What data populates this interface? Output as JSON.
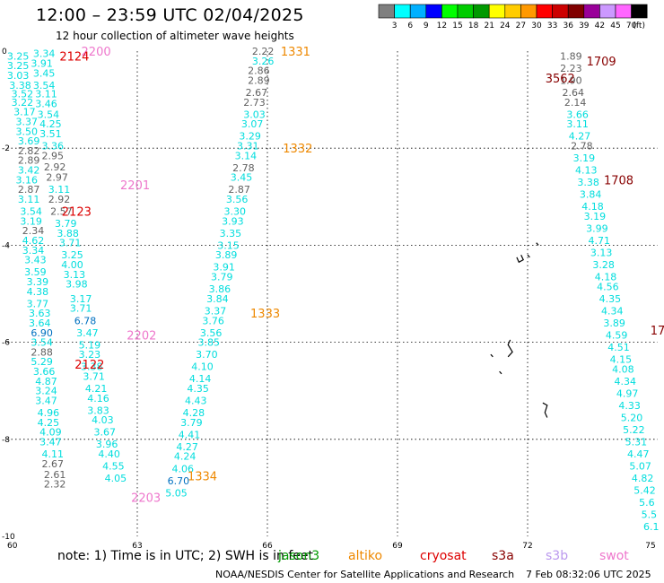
{
  "header": {
    "title": "12:00 – 23:59 UTC 02/04/2025",
    "subtitle": "12 hour collection of altimeter wave heights"
  },
  "colorbar": {
    "unit": "(ft)",
    "bins": [
      {
        "color": "#7f7f7f",
        "label": "3"
      },
      {
        "color": "#00ffff",
        "label": "6"
      },
      {
        "color": "#00b0ff",
        "label": "9"
      },
      {
        "color": "#0000ff",
        "label": "12"
      },
      {
        "color": "#00ff00",
        "label": "15"
      },
      {
        "color": "#00cc00",
        "label": "18"
      },
      {
        "color": "#009900",
        "label": "21"
      },
      {
        "color": "#ffff00",
        "label": "24"
      },
      {
        "color": "#ffcc00",
        "label": "27"
      },
      {
        "color": "#ff9900",
        "label": "30"
      },
      {
        "color": "#ff0000",
        "label": "33"
      },
      {
        "color": "#cc0000",
        "label": "36"
      },
      {
        "color": "#800000",
        "label": "39"
      },
      {
        "color": "#990099",
        "label": "42"
      },
      {
        "color": "#cc99ff",
        "label": "45"
      },
      {
        "color": "#ff66ff",
        "label": "70"
      },
      {
        "color": "#000000",
        "label": ""
      }
    ]
  },
  "axes": {
    "lon_ticks": [
      "60",
      "63",
      "66",
      "69",
      "72",
      "75"
    ],
    "lat_ticks": [
      "0",
      "-2",
      "-4",
      "-6",
      "-8",
      "-10"
    ],
    "lon_range": [
      60,
      75
    ],
    "lat_range": [
      0,
      -10
    ]
  },
  "colors": {
    "teal": "#00dddd",
    "gray": "#606060",
    "blue": "#0070c0",
    "pass_orange": "#ee8800",
    "pass_red": "#dd0000",
    "pass_pink": "#ee77cc",
    "pass_maroon": "#880000"
  },
  "tracks": [
    {
      "lon": 60.85,
      "lat": -0.05,
      "v": "3.34",
      "c": "teal"
    },
    {
      "lon": 60.25,
      "lat": -0.1,
      "v": "3.25",
      "c": "teal"
    },
    {
      "lon": 60.8,
      "lat": -0.25,
      "v": "3.91",
      "c": "teal"
    },
    {
      "lon": 60.25,
      "lat": -0.3,
      "v": "3.25",
      "c": "teal"
    },
    {
      "lon": 60.85,
      "lat": -0.45,
      "v": "3.45",
      "c": "teal"
    },
    {
      "lon": 60.25,
      "lat": -0.5,
      "v": "3.03",
      "c": "teal"
    },
    {
      "lon": 60.3,
      "lat": -0.7,
      "v": "3.38",
      "c": "teal"
    },
    {
      "lon": 60.85,
      "lat": -0.7,
      "v": "3.54",
      "c": "teal"
    },
    {
      "lon": 60.35,
      "lat": -0.88,
      "v": "3.52",
      "c": "teal"
    },
    {
      "lon": 60.9,
      "lat": -0.88,
      "v": "3.11",
      "c": "teal"
    },
    {
      "lon": 60.35,
      "lat": -1.05,
      "v": "3.22",
      "c": "teal"
    },
    {
      "lon": 60.9,
      "lat": -1.08,
      "v": "3.46",
      "c": "teal"
    },
    {
      "lon": 60.4,
      "lat": -1.25,
      "v": "3.17",
      "c": "teal"
    },
    {
      "lon": 60.95,
      "lat": -1.3,
      "v": "3.54",
      "c": "teal"
    },
    {
      "lon": 60.45,
      "lat": -1.45,
      "v": "3.37",
      "c": "teal"
    },
    {
      "lon": 61.0,
      "lat": -1.5,
      "v": "4.25",
      "c": "teal"
    },
    {
      "lon": 60.45,
      "lat": -1.65,
      "v": "3.50",
      "c": "teal"
    },
    {
      "lon": 61.0,
      "lat": -1.7,
      "v": "3.51",
      "c": "teal"
    },
    {
      "lon": 60.5,
      "lat": -1.85,
      "v": "3.69",
      "c": "teal"
    },
    {
      "lon": 61.05,
      "lat": -1.95,
      "v": "3.36",
      "c": "teal"
    },
    {
      "lon": 60.5,
      "lat": -2.05,
      "v": "2.82",
      "c": "gray"
    },
    {
      "lon": 61.05,
      "lat": -2.15,
      "v": "2.95",
      "c": "gray"
    },
    {
      "lon": 60.5,
      "lat": -2.25,
      "v": "2.89",
      "c": "gray"
    },
    {
      "lon": 61.1,
      "lat": -2.38,
      "v": "2.92",
      "c": "gray"
    },
    {
      "lon": 60.5,
      "lat": -2.45,
      "v": "3.42",
      "c": "teal"
    },
    {
      "lon": 60.45,
      "lat": -2.65,
      "v": "3.16",
      "c": "teal"
    },
    {
      "lon": 61.15,
      "lat": -2.6,
      "v": "2.97",
      "c": "gray"
    },
    {
      "lon": 60.5,
      "lat": -2.85,
      "v": "2.87",
      "c": "gray"
    },
    {
      "lon": 61.2,
      "lat": -2.85,
      "v": "3.11",
      "c": "teal"
    },
    {
      "lon": 60.5,
      "lat": -3.05,
      "v": "3.11",
      "c": "teal"
    },
    {
      "lon": 61.2,
      "lat": -3.05,
      "v": "2.92",
      "c": "gray"
    },
    {
      "lon": 60.55,
      "lat": -3.3,
      "v": "3.54",
      "c": "teal"
    },
    {
      "lon": 61.25,
      "lat": -3.3,
      "v": "2.57",
      "c": "gray"
    },
    {
      "lon": 60.55,
      "lat": -3.5,
      "v": "3.19",
      "c": "teal"
    },
    {
      "lon": 61.35,
      "lat": -3.55,
      "v": "3.79",
      "c": "teal"
    },
    {
      "lon": 60.6,
      "lat": -3.7,
      "v": "2.34",
      "c": "gray"
    },
    {
      "lon": 61.4,
      "lat": -3.75,
      "v": "3.88",
      "c": "teal"
    },
    {
      "lon": 60.6,
      "lat": -3.9,
      "v": "4.62",
      "c": "teal"
    },
    {
      "lon": 61.45,
      "lat": -3.95,
      "v": "3.71",
      "c": "teal"
    },
    {
      "lon": 60.6,
      "lat": -4.1,
      "v": "3.34",
      "c": "teal"
    },
    {
      "lon": 61.5,
      "lat": -4.2,
      "v": "3.25",
      "c": "teal"
    },
    {
      "lon": 60.65,
      "lat": -4.3,
      "v": "3.43",
      "c": "teal"
    },
    {
      "lon": 61.5,
      "lat": -4.4,
      "v": "4.00",
      "c": "teal"
    },
    {
      "lon": 60.65,
      "lat": -4.55,
      "v": "3.59",
      "c": "teal"
    },
    {
      "lon": 61.55,
      "lat": -4.6,
      "v": "3.13",
      "c": "teal"
    },
    {
      "lon": 60.7,
      "lat": -4.75,
      "v": "3.39",
      "c": "teal"
    },
    {
      "lon": 61.6,
      "lat": -4.8,
      "v": "3.98",
      "c": "teal"
    },
    {
      "lon": 60.7,
      "lat": -4.95,
      "v": "4.38",
      "c": "teal"
    },
    {
      "lon": 61.7,
      "lat": -5.1,
      "v": "3.17",
      "c": "teal"
    },
    {
      "lon": 60.7,
      "lat": -5.2,
      "v": "3.77",
      "c": "teal"
    },
    {
      "lon": 61.7,
      "lat": -5.3,
      "v": "3.71",
      "c": "teal"
    },
    {
      "lon": 60.75,
      "lat": -5.4,
      "v": "3.63",
      "c": "teal"
    },
    {
      "lon": 61.8,
      "lat": -5.55,
      "v": "6.78",
      "c": "blue"
    },
    {
      "lon": 60.75,
      "lat": -5.6,
      "v": "3.64",
      "c": "teal"
    },
    {
      "lon": 60.8,
      "lat": -5.8,
      "v": "6.90",
      "c": "blue"
    },
    {
      "lon": 61.85,
      "lat": -5.8,
      "v": "3.47",
      "c": "teal"
    },
    {
      "lon": 60.8,
      "lat": -6.0,
      "v": "3.54",
      "c": "teal"
    },
    {
      "lon": 61.9,
      "lat": -6.05,
      "v": "5.19",
      "c": "teal"
    },
    {
      "lon": 60.8,
      "lat": -6.2,
      "v": "2.88",
      "c": "gray"
    },
    {
      "lon": 61.9,
      "lat": -6.25,
      "v": "3.23",
      "c": "teal"
    },
    {
      "lon": 60.8,
      "lat": -6.4,
      "v": "5.29",
      "c": "teal"
    },
    {
      "lon": 61.95,
      "lat": -6.5,
      "v": "3.38",
      "c": "teal"
    },
    {
      "lon": 60.85,
      "lat": -6.6,
      "v": "3.66",
      "c": "teal"
    },
    {
      "lon": 62.0,
      "lat": -6.7,
      "v": "3.71",
      "c": "teal"
    },
    {
      "lon": 60.9,
      "lat": -6.8,
      "v": "4.87",
      "c": "teal"
    },
    {
      "lon": 62.05,
      "lat": -6.95,
      "v": "4.21",
      "c": "teal"
    },
    {
      "lon": 60.9,
      "lat": -7.0,
      "v": "3.24",
      "c": "teal"
    },
    {
      "lon": 62.1,
      "lat": -7.15,
      "v": "4.16",
      "c": "teal"
    },
    {
      "lon": 60.9,
      "lat": -7.2,
      "v": "3.47",
      "c": "teal"
    },
    {
      "lon": 62.1,
      "lat": -7.4,
      "v": "3.83",
      "c": "teal"
    },
    {
      "lon": 60.95,
      "lat": -7.45,
      "v": "4.96",
      "c": "teal"
    },
    {
      "lon": 62.2,
      "lat": -7.6,
      "v": "4.03",
      "c": "teal"
    },
    {
      "lon": 60.95,
      "lat": -7.65,
      "v": "4.25",
      "c": "teal"
    },
    {
      "lon": 62.25,
      "lat": -7.85,
      "v": "3.67",
      "c": "teal"
    },
    {
      "lon": 61.0,
      "lat": -7.85,
      "v": "4.09",
      "c": "teal"
    },
    {
      "lon": 61.0,
      "lat": -8.05,
      "v": "3.47",
      "c": "teal"
    },
    {
      "lon": 62.3,
      "lat": -8.1,
      "v": "3.96",
      "c": "teal"
    },
    {
      "lon": 61.05,
      "lat": -8.3,
      "v": "4.11",
      "c": "teal"
    },
    {
      "lon": 62.35,
      "lat": -8.3,
      "v": "4.40",
      "c": "teal"
    },
    {
      "lon": 61.05,
      "lat": -8.5,
      "v": "2.67",
      "c": "gray"
    },
    {
      "lon": 62.45,
      "lat": -8.55,
      "v": "4.55",
      "c": "teal"
    },
    {
      "lon": 61.1,
      "lat": -8.72,
      "v": "2.61",
      "c": "gray"
    },
    {
      "lon": 62.5,
      "lat": -8.8,
      "v": "4.05",
      "c": "teal"
    },
    {
      "lon": 61.1,
      "lat": -8.92,
      "v": "2.32",
      "c": "gray"
    },
    {
      "lon": 65.9,
      "lat": 0.0,
      "v": "2.22",
      "c": "gray"
    },
    {
      "lon": 65.9,
      "lat": -0.2,
      "v": "3.26",
      "c": "teal"
    },
    {
      "lon": 65.8,
      "lat": -0.4,
      "v": "2.86",
      "c": "gray"
    },
    {
      "lon": 65.8,
      "lat": -0.6,
      "v": "2.89",
      "c": "gray"
    },
    {
      "lon": 65.75,
      "lat": -0.85,
      "v": "2.67",
      "c": "gray"
    },
    {
      "lon": 65.7,
      "lat": -1.05,
      "v": "2.73",
      "c": "gray"
    },
    {
      "lon": 65.7,
      "lat": -1.3,
      "v": "3.03",
      "c": "teal"
    },
    {
      "lon": 65.65,
      "lat": -1.5,
      "v": "3.07",
      "c": "teal"
    },
    {
      "lon": 65.6,
      "lat": -1.75,
      "v": "3.29",
      "c": "teal"
    },
    {
      "lon": 65.55,
      "lat": -1.95,
      "v": "3.31",
      "c": "teal"
    },
    {
      "lon": 65.5,
      "lat": -2.15,
      "v": "3.14",
      "c": "teal"
    },
    {
      "lon": 65.45,
      "lat": -2.4,
      "v": "2.78",
      "c": "gray"
    },
    {
      "lon": 65.4,
      "lat": -2.6,
      "v": "3.45",
      "c": "teal"
    },
    {
      "lon": 65.35,
      "lat": -2.85,
      "v": "2.87",
      "c": "gray"
    },
    {
      "lon": 65.3,
      "lat": -3.05,
      "v": "3.56",
      "c": "teal"
    },
    {
      "lon": 65.25,
      "lat": -3.3,
      "v": "3.30",
      "c": "teal"
    },
    {
      "lon": 65.2,
      "lat": -3.5,
      "v": "3.93",
      "c": "teal"
    },
    {
      "lon": 65.15,
      "lat": -3.75,
      "v": "3.35",
      "c": "teal"
    },
    {
      "lon": 65.1,
      "lat": -4.0,
      "v": "3.15",
      "c": "teal"
    },
    {
      "lon": 65.05,
      "lat": -4.2,
      "v": "3.89",
      "c": "teal"
    },
    {
      "lon": 65.0,
      "lat": -4.45,
      "v": "3.91",
      "c": "teal"
    },
    {
      "lon": 64.95,
      "lat": -4.65,
      "v": "3.79",
      "c": "teal"
    },
    {
      "lon": 64.9,
      "lat": -4.9,
      "v": "3.86",
      "c": "teal"
    },
    {
      "lon": 64.85,
      "lat": -5.1,
      "v": "3.84",
      "c": "teal"
    },
    {
      "lon": 64.8,
      "lat": -5.35,
      "v": "3.37",
      "c": "teal"
    },
    {
      "lon": 64.75,
      "lat": -5.55,
      "v": "3.76",
      "c": "teal"
    },
    {
      "lon": 64.7,
      "lat": -5.8,
      "v": "3.56",
      "c": "teal"
    },
    {
      "lon": 64.65,
      "lat": -6.0,
      "v": "3.85",
      "c": "teal"
    },
    {
      "lon": 64.6,
      "lat": -6.25,
      "v": "3.70",
      "c": "teal"
    },
    {
      "lon": 64.5,
      "lat": -6.5,
      "v": "4.10",
      "c": "teal"
    },
    {
      "lon": 64.45,
      "lat": -6.75,
      "v": "4.14",
      "c": "teal"
    },
    {
      "lon": 64.4,
      "lat": -6.95,
      "v": "4.35",
      "c": "teal"
    },
    {
      "lon": 64.35,
      "lat": -7.2,
      "v": "4.43",
      "c": "teal"
    },
    {
      "lon": 64.3,
      "lat": -7.45,
      "v": "4.28",
      "c": "teal"
    },
    {
      "lon": 64.25,
      "lat": -7.65,
      "v": "3.79",
      "c": "teal"
    },
    {
      "lon": 64.2,
      "lat": -7.9,
      "v": "4.41",
      "c": "teal"
    },
    {
      "lon": 64.15,
      "lat": -8.15,
      "v": "4.27",
      "c": "teal"
    },
    {
      "lon": 64.1,
      "lat": -8.35,
      "v": "4.24",
      "c": "teal"
    },
    {
      "lon": 64.05,
      "lat": -8.6,
      "v": "4.06",
      "c": "teal"
    },
    {
      "lon": 63.95,
      "lat": -8.85,
      "v": "6.70",
      "c": "blue"
    },
    {
      "lon": 63.9,
      "lat": -9.1,
      "v": "5.05",
      "c": "teal"
    },
    {
      "lon": 73.0,
      "lat": -0.1,
      "v": "1.89",
      "c": "gray"
    },
    {
      "lon": 73.0,
      "lat": -0.35,
      "v": "2.23",
      "c": "gray"
    },
    {
      "lon": 73.0,
      "lat": -0.6,
      "v": "1.90",
      "c": "gray"
    },
    {
      "lon": 73.05,
      "lat": -0.85,
      "v": "2.64",
      "c": "gray"
    },
    {
      "lon": 73.1,
      "lat": -1.05,
      "v": "2.14",
      "c": "gray"
    },
    {
      "lon": 73.15,
      "lat": -1.3,
      "v": "3.66",
      "c": "teal"
    },
    {
      "lon": 73.15,
      "lat": -1.5,
      "v": "3.11",
      "c": "teal"
    },
    {
      "lon": 73.2,
      "lat": -1.75,
      "v": "4.27",
      "c": "teal"
    },
    {
      "lon": 73.25,
      "lat": -1.95,
      "v": "2.78",
      "c": "gray"
    },
    {
      "lon": 73.3,
      "lat": -2.2,
      "v": "3.19",
      "c": "teal"
    },
    {
      "lon": 73.35,
      "lat": -2.45,
      "v": "4.13",
      "c": "teal"
    },
    {
      "lon": 73.4,
      "lat": -2.7,
      "v": "3.38",
      "c": "teal"
    },
    {
      "lon": 73.45,
      "lat": -2.95,
      "v": "3.84",
      "c": "teal"
    },
    {
      "lon": 73.5,
      "lat": -3.2,
      "v": "4.18",
      "c": "teal"
    },
    {
      "lon": 73.55,
      "lat": -3.4,
      "v": "3.19",
      "c": "teal"
    },
    {
      "lon": 73.6,
      "lat": -3.65,
      "v": "3.99",
      "c": "teal"
    },
    {
      "lon": 73.65,
      "lat": -3.9,
      "v": "4.71",
      "c": "teal"
    },
    {
      "lon": 73.7,
      "lat": -4.15,
      "v": "3.13",
      "c": "teal"
    },
    {
      "lon": 73.75,
      "lat": -4.4,
      "v": "3.28",
      "c": "teal"
    },
    {
      "lon": 73.8,
      "lat": -4.65,
      "v": "4.18",
      "c": "teal"
    },
    {
      "lon": 73.85,
      "lat": -4.85,
      "v": "4.56",
      "c": "teal"
    },
    {
      "lon": 73.9,
      "lat": -5.1,
      "v": "4.35",
      "c": "teal"
    },
    {
      "lon": 73.95,
      "lat": -5.35,
      "v": "4.34",
      "c": "teal"
    },
    {
      "lon": 74.0,
      "lat": -5.6,
      "v": "3.89",
      "c": "teal"
    },
    {
      "lon": 74.05,
      "lat": -5.85,
      "v": "4.59",
      "c": "teal"
    },
    {
      "lon": 74.1,
      "lat": -6.1,
      "v": "4.51",
      "c": "teal"
    },
    {
      "lon": 74.15,
      "lat": -6.35,
      "v": "4.15",
      "c": "teal"
    },
    {
      "lon": 74.2,
      "lat": -6.55,
      "v": "4.08",
      "c": "teal"
    },
    {
      "lon": 74.25,
      "lat": -6.8,
      "v": "4.34",
      "c": "teal"
    },
    {
      "lon": 74.3,
      "lat": -7.05,
      "v": "4.97",
      "c": "teal"
    },
    {
      "lon": 74.35,
      "lat": -7.3,
      "v": "4.33",
      "c": "teal"
    },
    {
      "lon": 74.4,
      "lat": -7.55,
      "v": "5.20",
      "c": "teal"
    },
    {
      "lon": 74.45,
      "lat": -7.8,
      "v": "5.22",
      "c": "teal"
    },
    {
      "lon": 74.5,
      "lat": -8.05,
      "v": "5.31",
      "c": "teal"
    },
    {
      "lon": 74.55,
      "lat": -8.3,
      "v": "4.47",
      "c": "teal"
    },
    {
      "lon": 74.6,
      "lat": -8.55,
      "v": "5.07",
      "c": "teal"
    },
    {
      "lon": 74.65,
      "lat": -8.8,
      "v": "4.82",
      "c": "teal"
    },
    {
      "lon": 74.7,
      "lat": -9.05,
      "v": "5.42",
      "c": "teal"
    },
    {
      "lon": 74.75,
      "lat": -9.3,
      "v": "5.6",
      "c": "teal"
    },
    {
      "lon": 74.8,
      "lat": -9.55,
      "v": "5.5",
      "c": "teal"
    },
    {
      "lon": 74.85,
      "lat": -9.8,
      "v": "6.1",
      "c": "teal"
    }
  ],
  "pass_labels": [
    {
      "lon": 62.05,
      "lat": 0.0,
      "text": "2200",
      "c": "pass_pink"
    },
    {
      "lon": 61.55,
      "lat": -0.1,
      "text": "2124",
      "c": "pass_red"
    },
    {
      "lon": 66.65,
      "lat": 0.0,
      "text": "1331",
      "c": "pass_orange"
    },
    {
      "lon": 73.7,
      "lat": -0.2,
      "text": "1709",
      "c": "pass_maroon"
    },
    {
      "lon": 72.75,
      "lat": -0.55,
      "text": "3562",
      "c": "pass_maroon"
    },
    {
      "lon": 66.7,
      "lat": -2.0,
      "text": "1332",
      "c": "pass_orange"
    },
    {
      "lon": 62.95,
      "lat": -2.75,
      "text": "2201",
      "c": "pass_pink"
    },
    {
      "lon": 74.1,
      "lat": -2.65,
      "text": "1708",
      "c": "pass_maroon"
    },
    {
      "lon": 61.6,
      "lat": -3.3,
      "text": "2123",
      "c": "pass_red"
    },
    {
      "lon": 65.95,
      "lat": -5.4,
      "text": "1333",
      "c": "pass_orange"
    },
    {
      "lon": 63.1,
      "lat": -5.85,
      "text": "2202",
      "c": "pass_pink"
    },
    {
      "lon": 61.9,
      "lat": -6.45,
      "text": "2122",
      "c": "pass_red"
    },
    {
      "lon": 75.0,
      "lat": -5.75,
      "text": "17",
      "c": "pass_maroon"
    },
    {
      "lon": 64.5,
      "lat": -8.75,
      "text": "1334",
      "c": "pass_orange"
    },
    {
      "lon": 63.2,
      "lat": -9.2,
      "text": "2203",
      "c": "pass_pink"
    }
  ],
  "islands": [
    [
      [
        71.75,
        -4.25
      ],
      [
        71.8,
        -4.35
      ],
      [
        71.9,
        -4.3
      ],
      [
        71.85,
        -4.2
      ]
    ],
    [
      [
        72.0,
        -4.2
      ],
      [
        72.05,
        -4.25
      ]
    ],
    [
      [
        72.2,
        -3.95
      ],
      [
        72.25,
        -4.0
      ]
    ],
    [
      [
        71.6,
        -5.95
      ],
      [
        71.55,
        -6.05
      ],
      [
        71.65,
        -6.2
      ],
      [
        71.55,
        -6.3
      ]
    ],
    [
      [
        71.15,
        -6.25
      ],
      [
        71.2,
        -6.3
      ]
    ],
    [
      [
        71.35,
        -6.6
      ],
      [
        71.4,
        -6.65
      ]
    ],
    [
      [
        72.35,
        -7.25
      ],
      [
        72.45,
        -7.3
      ],
      [
        72.4,
        -7.45
      ],
      [
        72.45,
        -7.55
      ]
    ]
  ],
  "footer": {
    "note": "note:  1) Time is in UTC; 2) SWH is in feet",
    "credit": "NOAA/NESDIS Center for Satellite Applications and Research",
    "timestamp": "7 Feb 08:32:06 UTC 2025"
  },
  "legend": [
    {
      "label": "jason3",
      "color": "#009900"
    },
    {
      "label": "altiko",
      "color": "#ee8800"
    },
    {
      "label": "cryosat",
      "color": "#dd0000"
    },
    {
      "label": "s3a",
      "color": "#880000"
    },
    {
      "label": "s3b",
      "color": "#bb99ee"
    },
    {
      "label": "swot",
      "color": "#ee77cc"
    }
  ]
}
